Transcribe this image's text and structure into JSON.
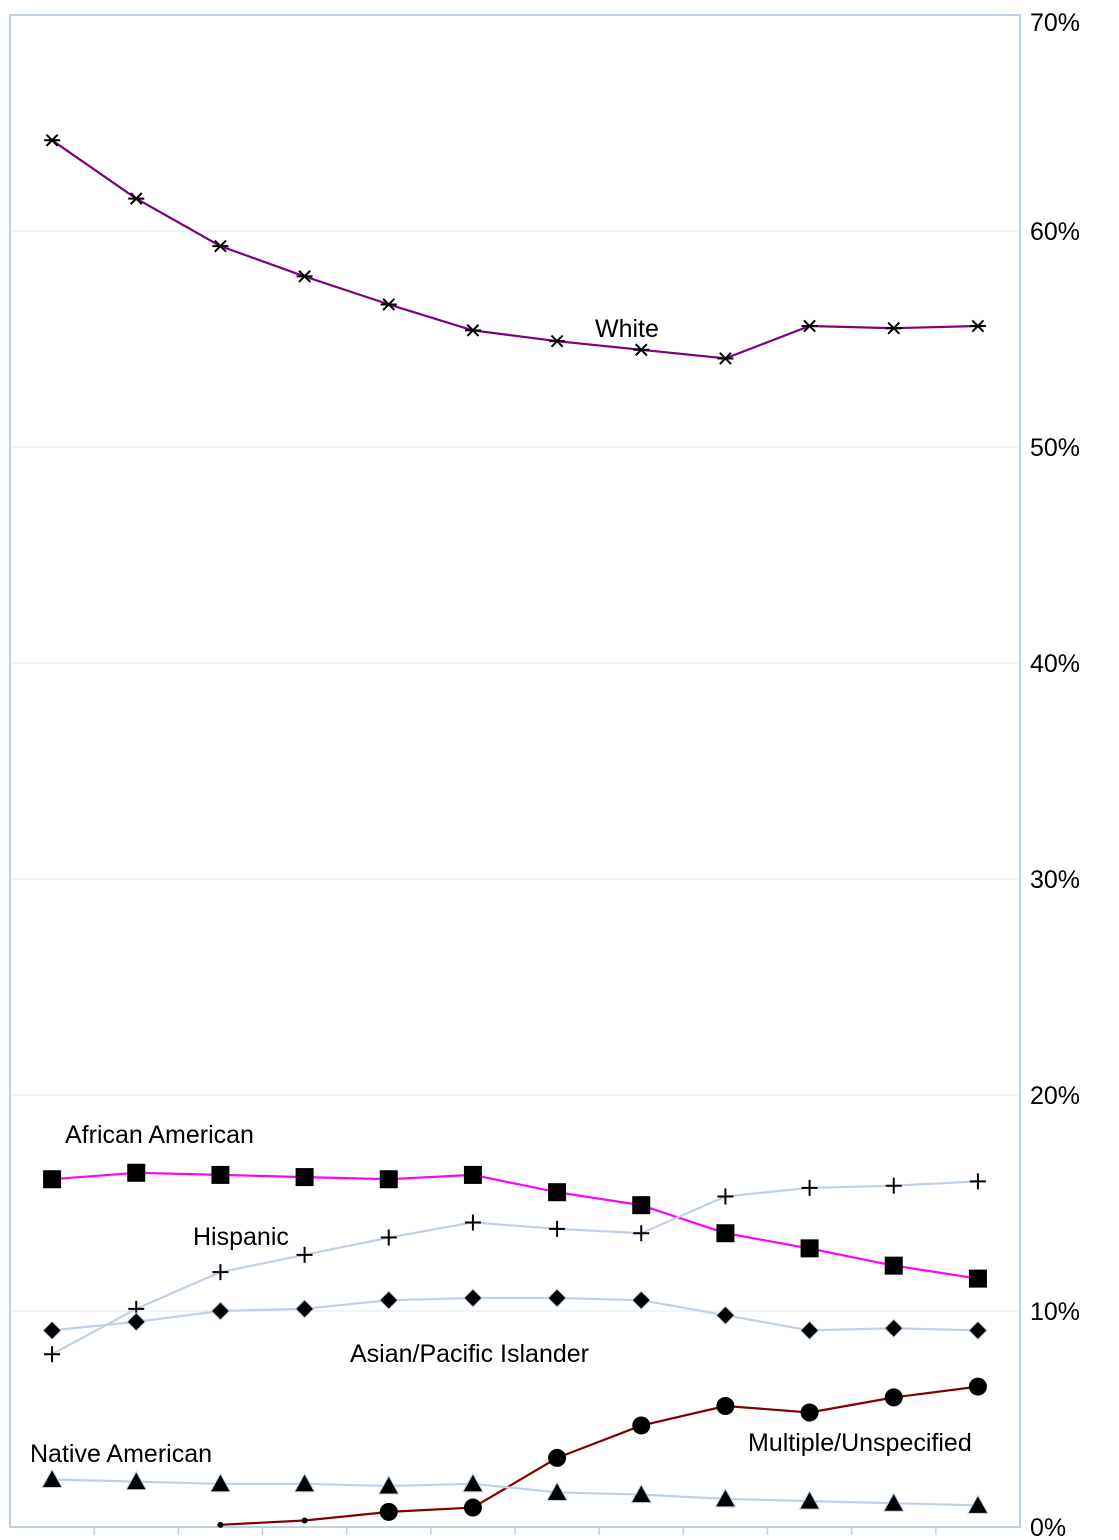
{
  "chart_data": {
    "type": "line",
    "x": [
      1,
      2,
      3,
      4,
      5,
      6,
      7,
      8,
      9,
      10,
      11,
      12
    ],
    "ylim": [
      0,
      70
    ],
    "y_ticks": [
      {
        "value": 0,
        "label": "0%"
      },
      {
        "value": 10,
        "label": "10%"
      },
      {
        "value": 20,
        "label": "20%"
      },
      {
        "value": 30,
        "label": "30%"
      },
      {
        "value": 40,
        "label": "40%"
      },
      {
        "value": 50,
        "label": "50%"
      },
      {
        "value": 60,
        "label": "60%"
      },
      {
        "value": 70,
        "label": "70%"
      }
    ],
    "y_axis_side": "right",
    "grid": "horizontal",
    "series": [
      {
        "name": "White",
        "marker": "asterisk",
        "color": "#800080",
        "values": [
          64.2,
          61.5,
          59.3,
          57.9,
          56.6,
          55.4,
          54.9,
          54.5,
          54.1,
          55.6,
          55.5,
          55.6
        ]
      },
      {
        "name": "African American",
        "marker": "square",
        "color": "#ff00ff",
        "values": [
          16.1,
          16.4,
          16.3,
          16.2,
          16.1,
          16.3,
          15.5,
          14.9,
          13.6,
          12.9,
          12.1,
          11.5
        ]
      },
      {
        "name": "Hispanic",
        "marker": "plus",
        "color": "#c0d0e4",
        "values": [
          8.0,
          10.1,
          11.8,
          12.6,
          13.4,
          14.1,
          13.8,
          13.6,
          15.3,
          15.7,
          15.8,
          16.0
        ]
      },
      {
        "name": "Asian/Pacific Islander",
        "marker": "diamond",
        "color": "#c0d0e4",
        "values": [
          9.1,
          9.5,
          10.0,
          10.1,
          10.5,
          10.6,
          10.6,
          10.5,
          9.8,
          9.1,
          9.2,
          9.1
        ]
      },
      {
        "name": "Multiple/Unspecified",
        "marker": "circle",
        "color": "#800000",
        "values": [
          null,
          null,
          0.1,
          0.3,
          0.7,
          0.9,
          3.2,
          4.7,
          5.6,
          5.3,
          6.0,
          6.5
        ]
      },
      {
        "name": "Native American",
        "marker": "triangle",
        "color": "#c0d0e4",
        "values": [
          2.2,
          2.1,
          2.0,
          2.0,
          1.9,
          2.0,
          1.6,
          1.5,
          1.3,
          1.2,
          1.1,
          1.0
        ]
      }
    ],
    "annotations": [
      "White",
      "African American",
      "Hispanic",
      "Asian/Pacific Islander",
      "Multiple/Unspecified",
      "Native American"
    ],
    "legend": "none",
    "colors": {
      "plot_border": "#c0d0e4",
      "gridline": "#e4e9f4"
    }
  }
}
